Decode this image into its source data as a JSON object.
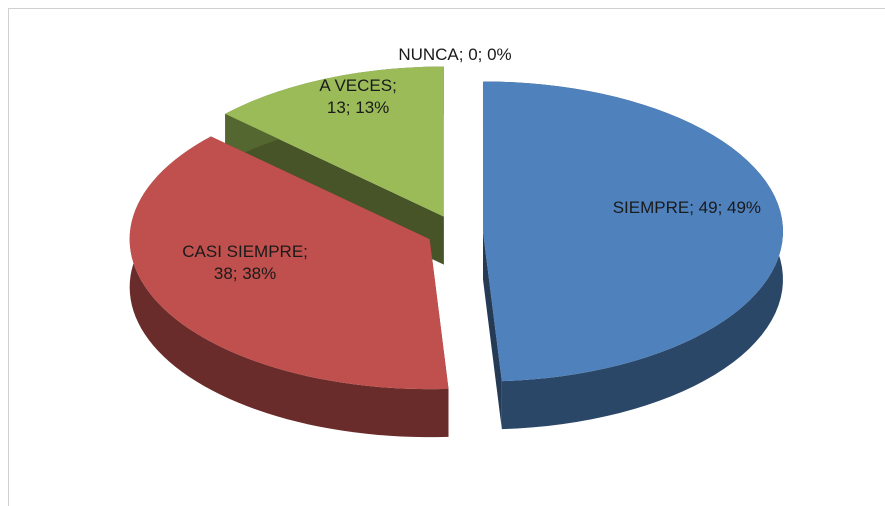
{
  "chart_data": {
    "type": "pie",
    "categories": [
      "SIEMPRE",
      "CASI SIEMPRE",
      "A VECES",
      "NUNCA"
    ],
    "values": [
      49,
      38,
      13,
      0
    ],
    "value_labels": [
      "SIEMPRE; 49; 49%",
      "CASI SIEMPRE; 38; 38%",
      "A VECES; 13; 13%",
      "NUNCA; 0; 0%"
    ],
    "colors": [
      "#4f81bd",
      "#c0504d",
      "#9bbb59",
      "#8064a2"
    ]
  }
}
